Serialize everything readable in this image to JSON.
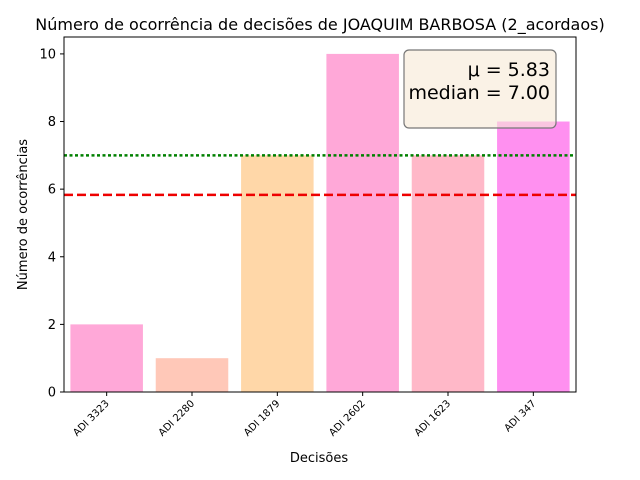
{
  "chart_data": {
    "type": "bar",
    "title": "Número de ocorrência de decisões de JOAQUIM BARBOSA (2_acordaos)",
    "xlabel": "Decisões",
    "ylabel": "Número de ocorrências",
    "categories": [
      "ADI 3323",
      "ADI 2280",
      "ADI 1879",
      "ADI 2602",
      "ADI 1623",
      "ADI 347"
    ],
    "values": [
      2,
      1,
      7,
      10,
      7,
      8
    ],
    "bar_colors": [
      "#ffa8d8",
      "#ffc8b8",
      "#ffd7a8",
      "#ffa8d8",
      "#ffb8c8",
      "#ff90f0"
    ],
    "ylim": [
      0,
      10.5
    ],
    "yticks": [
      0,
      2,
      4,
      6,
      8,
      10
    ],
    "grid": false,
    "mean": 5.83,
    "median": 7.0,
    "mean_color": "#ee0000",
    "median_color": "#008000",
    "stats_box": {
      "mean_text": "μ = 5.83",
      "median_text": "median = 7.00",
      "placement": "top-right",
      "fill": "#f7ead5",
      "border": "#777777"
    }
  }
}
